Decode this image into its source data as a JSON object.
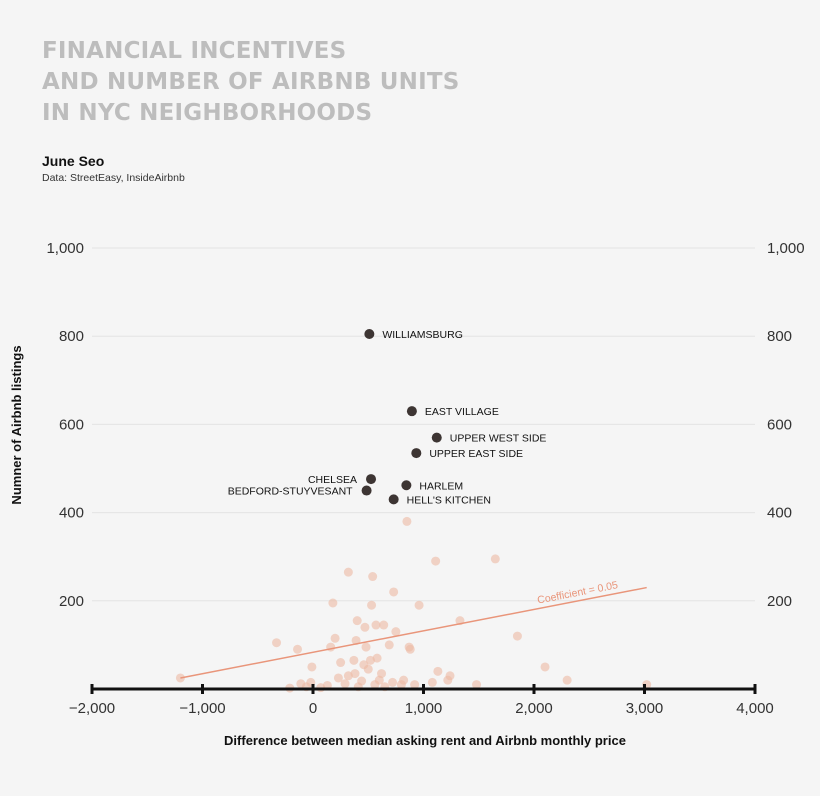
{
  "title_lines": [
    "FINANCIAL INCENTIVES",
    "AND NUMBER OF AIRBNB UNITS",
    "IN NYC NEIGHBORHOODS"
  ],
  "author": "June Seo",
  "source": "Data: StreetEasy, InsideAirbnb",
  "colors": {
    "title": "#bdbdbd",
    "highlight": "#3d3533",
    "faded": "#ecb9a4",
    "trend": "#e9957a",
    "grid": "#e3e3e3",
    "axis": "#111111"
  },
  "chart_data": {
    "type": "scatter",
    "xlabel": "Difference between median asking rent and Airbnb monthly price",
    "ylabel": "Numner of Airbnb listings",
    "xlim": [
      -2000,
      4000
    ],
    "ylim": [
      0,
      1000
    ],
    "x_ticks": [
      -2000,
      -1000,
      0,
      1000,
      2000,
      3000,
      4000
    ],
    "x_tick_labels": [
      "−2,000",
      "−1,000",
      "0",
      "1,000",
      "2,000",
      "3,000",
      "4,000"
    ],
    "y_ticks": [
      200,
      400,
      600,
      800,
      1000
    ],
    "y_tick_labels": [
      "200",
      "400",
      "600",
      "800",
      "1,000"
    ],
    "grid": true,
    "highlighted": [
      {
        "label": "WILLIAMSBURG",
        "x": 510,
        "y": 805,
        "label_side": "right"
      },
      {
        "label": "EAST VILLAGE",
        "x": 895,
        "y": 630,
        "label_side": "right"
      },
      {
        "label": "UPPER WEST SIDE",
        "x": 1120,
        "y": 570,
        "label_side": "right"
      },
      {
        "label": "UPPER EAST SIDE",
        "x": 935,
        "y": 535,
        "label_side": "right"
      },
      {
        "label": "CHELSEA",
        "x": 525,
        "y": 476,
        "label_side": "left"
      },
      {
        "label": "HARLEM",
        "x": 845,
        "y": 462,
        "label_side": "right"
      },
      {
        "label": "BEDFORD-STUYVESANT",
        "x": 485,
        "y": 450,
        "label_side": "left"
      },
      {
        "label": "HELL'S KITCHEN",
        "x": 730,
        "y": 430,
        "label_side": "right"
      }
    ],
    "other_points": [
      [
        -1200,
        25
      ],
      [
        -330,
        105
      ],
      [
        -210,
        2
      ],
      [
        -140,
        90
      ],
      [
        -110,
        12
      ],
      [
        -60,
        5
      ],
      [
        -20,
        15
      ],
      [
        -10,
        50
      ],
      [
        70,
        3
      ],
      [
        130,
        8
      ],
      [
        160,
        95
      ],
      [
        180,
        195
      ],
      [
        200,
        115
      ],
      [
        230,
        25
      ],
      [
        250,
        60
      ],
      [
        290,
        12
      ],
      [
        320,
        30
      ],
      [
        320,
        265
      ],
      [
        370,
        65
      ],
      [
        380,
        35
      ],
      [
        390,
        110
      ],
      [
        400,
        155
      ],
      [
        410,
        5
      ],
      [
        440,
        18
      ],
      [
        460,
        55
      ],
      [
        470,
        140
      ],
      [
        480,
        95
      ],
      [
        500,
        45
      ],
      [
        520,
        65
      ],
      [
        530,
        190
      ],
      [
        540,
        255
      ],
      [
        560,
        10
      ],
      [
        570,
        145
      ],
      [
        580,
        70
      ],
      [
        600,
        20
      ],
      [
        620,
        35
      ],
      [
        640,
        145
      ],
      [
        650,
        5
      ],
      [
        690,
        100
      ],
      [
        720,
        15
      ],
      [
        730,
        220
      ],
      [
        750,
        130
      ],
      [
        800,
        10
      ],
      [
        820,
        20
      ],
      [
        850,
        380
      ],
      [
        870,
        95
      ],
      [
        880,
        90
      ],
      [
        920,
        10
      ],
      [
        960,
        190
      ],
      [
        1080,
        15
      ],
      [
        1110,
        290
      ],
      [
        1130,
        40
      ],
      [
        1220,
        20
      ],
      [
        1240,
        30
      ],
      [
        1330,
        155
      ],
      [
        1480,
        10
      ],
      [
        1650,
        295
      ],
      [
        1850,
        120
      ],
      [
        2100,
        50
      ],
      [
        2300,
        20
      ],
      [
        3020,
        10
      ]
    ],
    "trend": {
      "x1": -1200,
      "y1": 25,
      "x2": 3020,
      "y2": 230,
      "label": "Coefficient = 0.05"
    }
  }
}
